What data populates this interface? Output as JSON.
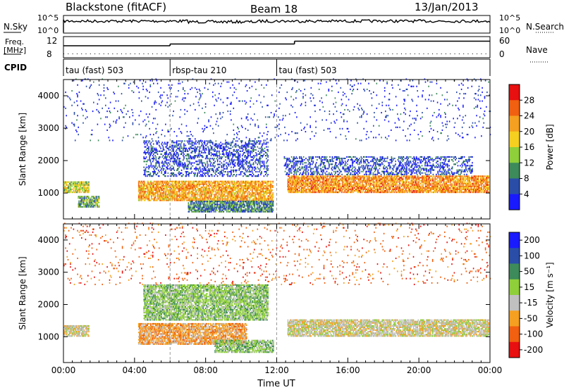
{
  "header": {
    "station": "Blackstone (fitACF)",
    "beam": "Beam 18",
    "date": "13/Jan/2013"
  },
  "top_panels": {
    "nsky_label": "N.Sky",
    "nsky_ticks": [
      "10^5",
      "10^0"
    ],
    "nsearch_label": "N.Search",
    "nsearch_ticks": [
      "10^5",
      "10^0"
    ],
    "freq_label_1": "Freq.",
    "freq_label_2": "[MHz]",
    "freq_ticks": [
      "12",
      "8"
    ],
    "nave_label": "Nave",
    "nave_ticks": [
      "60",
      "0"
    ],
    "cpid_label": "CPID",
    "cpid_segments": [
      {
        "start_h": 0,
        "end_h": 6,
        "label": "tau (fast) 503"
      },
      {
        "start_h": 6,
        "end_h": 12,
        "label": "rbsp-tau 210"
      },
      {
        "start_h": 12,
        "end_h": 24,
        "label": "tau (fast) 503"
      }
    ],
    "freq_steps": [
      {
        "start_h": 0,
        "end_h": 6,
        "value_mhz": 10.4
      },
      {
        "start_h": 6,
        "end_h": 12,
        "value_mhz": 10.9
      },
      {
        "start_h": 12,
        "end_h": 13,
        "value_mhz": 10.9
      },
      {
        "start_h": 13,
        "end_h": 24,
        "value_mhz": 11.7
      }
    ]
  },
  "chart_data": [
    {
      "type": "heatmap",
      "name": "power",
      "ylabel": "Slant Range [km]",
      "ylim": [
        200,
        4500
      ],
      "yticks": [
        "1000",
        "2000",
        "3000",
        "4000"
      ],
      "xlim": [
        0,
        24
      ],
      "xticks": [
        "00:00",
        "04:00",
        "08:00",
        "12:00",
        "16:00",
        "20:00",
        "00:00"
      ],
      "colorbar_label": "Power [dB]",
      "colorbar_ticks": [
        "4",
        "8",
        "12",
        "16",
        "20",
        "24",
        "28"
      ],
      "colors": [
        "#1a1aff",
        "#2a4ea8",
        "#3d8a5a",
        "#8fcf3a",
        "#f5d020",
        "#f5a020",
        "#f06010",
        "#e81010"
      ],
      "bands": [
        {
          "t0": 0.0,
          "t1": 1.4,
          "r0": 1000,
          "r1": 1350,
          "level": 0.5
        },
        {
          "t0": 0.8,
          "t1": 2.0,
          "r0": 550,
          "r1": 900,
          "level": 0.35
        },
        {
          "t0": 4.2,
          "t1": 11.8,
          "r0": 750,
          "r1": 1350,
          "level": 0.7
        },
        {
          "t0": 7.0,
          "t1": 11.8,
          "r0": 400,
          "r1": 750,
          "level": 0.25
        },
        {
          "t0": 4.5,
          "t1": 11.5,
          "r0": 1500,
          "r1": 2600,
          "level": 0.08
        },
        {
          "t0": 12.6,
          "t1": 23.9,
          "r0": 1000,
          "r1": 1500,
          "level": 0.75
        },
        {
          "t0": 12.4,
          "t1": 23.0,
          "r0": 1550,
          "r1": 2100,
          "level": 0.1
        },
        {
          "t0": 0.0,
          "t1": 24.0,
          "r0": 2600,
          "r1": 4500,
          "level": 0.05
        }
      ]
    },
    {
      "type": "heatmap",
      "name": "velocity",
      "ylabel": "Slant Range [km]",
      "ylim": [
        200,
        4500
      ],
      "yticks": [
        "1000",
        "2000",
        "3000",
        "4000"
      ],
      "xlim": [
        0,
        24
      ],
      "xticks": [
        "00:00",
        "04:00",
        "08:00",
        "12:00",
        "16:00",
        "20:00",
        "00:00"
      ],
      "xlabel": "Time UT",
      "colorbar_label": "Velocity [m s⁻¹]",
      "colorbar_ticks": [
        "200",
        "100",
        "50",
        "15",
        "-15",
        "-50",
        "-100",
        "-200"
      ],
      "colors": [
        "#1a1aff",
        "#2a4ea8",
        "#3d8a5a",
        "#8fcf3a",
        "#c0c0c0",
        "#f5a020",
        "#f06010",
        "#e81010"
      ],
      "bands": [
        {
          "t0": 0.0,
          "t1": 1.4,
          "r0": 1000,
          "r1": 1350,
          "level": 4
        },
        {
          "t0": 4.2,
          "t1": 10.3,
          "r0": 750,
          "r1": 1400,
          "level": 5
        },
        {
          "t0": 8.5,
          "t1": 11.8,
          "r0": 500,
          "r1": 900,
          "level": 3
        },
        {
          "t0": 4.5,
          "t1": 11.5,
          "r0": 1500,
          "r1": 2600,
          "level": 3
        },
        {
          "t0": 12.6,
          "t1": 23.9,
          "r0": 1000,
          "r1": 1500,
          "level": 4
        },
        {
          "t0": 0.0,
          "t1": 24.0,
          "r0": 2600,
          "r1": 4500,
          "level": 6
        }
      ]
    }
  ],
  "time_label": "Time UT"
}
